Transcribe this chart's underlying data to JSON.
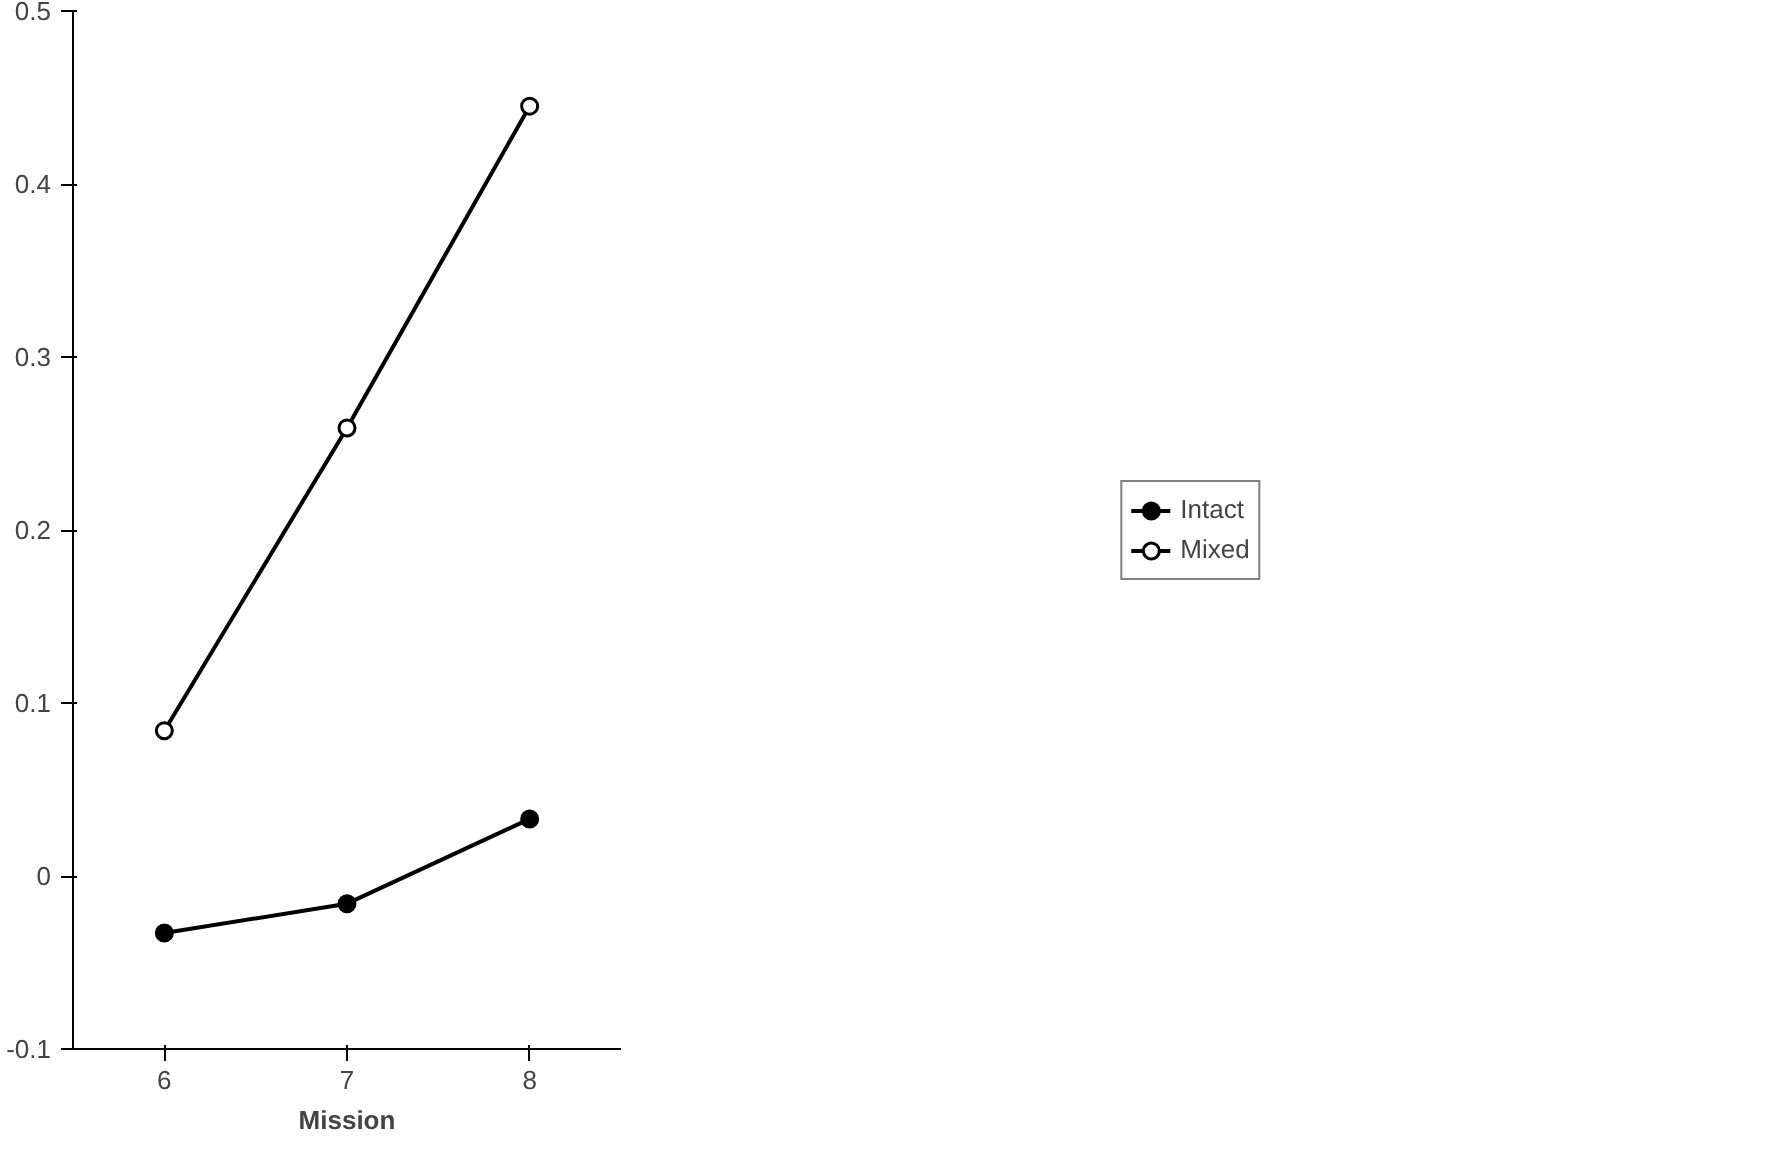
{
  "chart_data": {
    "type": "line",
    "xlabel": "Mission",
    "categories": [
      "6",
      "7",
      "8"
    ],
    "series": [
      {
        "name": "Intact",
        "color": "#000000",
        "values": [
          -0.033,
          -0.016,
          0.033
        ]
      },
      {
        "name": "Mixed",
        "color": "#000000",
        "values": [
          0.084,
          0.259,
          0.445
        ]
      }
    ],
    "ylim": [
      -0.1,
      0.5
    ],
    "yticks": [
      -0.1,
      0,
      0.1,
      0.2,
      0.3,
      0.4,
      0.5
    ],
    "grid": false,
    "legend": "right",
    "marker": "circle",
    "line_style": "solid"
  }
}
